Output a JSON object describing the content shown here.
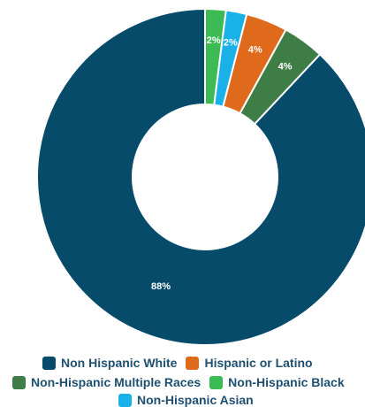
{
  "chart_data": {
    "type": "pie",
    "donut": true,
    "categories": [
      "Non-Hispanic Black",
      "Non-Hispanic Asian",
      "Hispanic or Latino",
      "Non-Hispanic Multiple Races",
      "Non Hispanic White"
    ],
    "values": [
      2,
      2,
      4,
      4,
      88
    ],
    "labels": [
      "2%",
      "2%",
      "4%",
      "4%",
      "88%"
    ],
    "colors": [
      "#3cba54",
      "#1ab0e8",
      "#e06a1b",
      "#3f7d47",
      "#064b6a"
    ],
    "legend": {
      "position": "bottom",
      "rows": [
        [
          {
            "label": "Non Hispanic White",
            "color": "#064b6a"
          },
          {
            "label": "Hispanic or Latino",
            "color": "#e06a1b"
          }
        ],
        [
          {
            "label": "Non-Hispanic Multiple Races",
            "color": "#3f7d47"
          },
          {
            "label": "Non-Hispanic Black",
            "color": "#3cba54"
          }
        ],
        [
          {
            "label": "Non-Hispanic Asian",
            "color": "#1ab0e8"
          }
        ]
      ]
    }
  }
}
